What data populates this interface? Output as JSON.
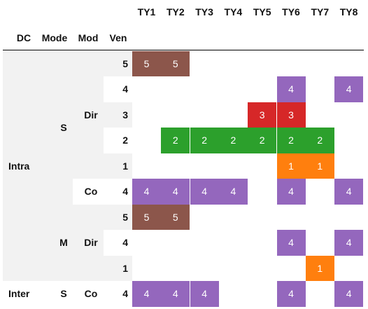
{
  "colors": {
    "5": "#8c564b",
    "4": "#9467bd",
    "3": "#d62728",
    "2": "#2ca02c",
    "1": "#ff7f0e",
    "label_bg": "#f2f2f2"
  },
  "headers": {
    "dc": "DC",
    "mode": "Mode",
    "mod": "Mod",
    "ven": "Ven"
  },
  "chart_data": {
    "type": "heatmap",
    "columns": [
      "TY1",
      "TY2",
      "TY3",
      "TY4",
      "TY5",
      "TY6",
      "TY7",
      "TY8"
    ],
    "rows": [
      {
        "dc": "Intra",
        "mode": "S",
        "mod": "Dir",
        "ven": "5",
        "values": [
          5,
          5,
          null,
          null,
          null,
          null,
          null,
          null
        ]
      },
      {
        "dc": "Intra",
        "mode": "S",
        "mod": "Dir",
        "ven": "4",
        "values": [
          null,
          null,
          null,
          null,
          null,
          4,
          null,
          4
        ]
      },
      {
        "dc": "Intra",
        "mode": "S",
        "mod": "Dir",
        "ven": "3",
        "values": [
          null,
          null,
          null,
          null,
          3,
          3,
          null,
          null
        ]
      },
      {
        "dc": "Intra",
        "mode": "S",
        "mod": "Dir",
        "ven": "2",
        "values": [
          null,
          2,
          2,
          2,
          2,
          2,
          2,
          null
        ]
      },
      {
        "dc": "Intra",
        "mode": "S",
        "mod": "Dir",
        "ven": "1",
        "values": [
          null,
          null,
          null,
          null,
          null,
          1,
          1,
          null
        ]
      },
      {
        "dc": "Intra",
        "mode": "S",
        "mod": "Co",
        "ven": "4",
        "values": [
          4,
          4,
          4,
          4,
          null,
          4,
          null,
          4
        ]
      },
      {
        "dc": "Intra",
        "mode": "M",
        "mod": "Dir",
        "ven": "5",
        "values": [
          5,
          5,
          null,
          null,
          null,
          null,
          null,
          null
        ]
      },
      {
        "dc": "Intra",
        "mode": "M",
        "mod": "Dir",
        "ven": "4",
        "values": [
          null,
          null,
          null,
          null,
          null,
          4,
          null,
          4
        ]
      },
      {
        "dc": "Intra",
        "mode": "M",
        "mod": "Dir",
        "ven": "1",
        "values": [
          null,
          null,
          null,
          null,
          null,
          null,
          1,
          null
        ]
      },
      {
        "dc": "Inter",
        "mode": "S",
        "mod": "Co",
        "ven": "4",
        "values": [
          4,
          4,
          4,
          null,
          null,
          4,
          null,
          4
        ]
      }
    ],
    "groups": {
      "dc": [
        {
          "label": "Intra",
          "start": 0,
          "end": 8
        },
        {
          "label": "Inter",
          "start": 9,
          "end": 9
        }
      ],
      "mode": [
        {
          "label": "S",
          "start": 0,
          "end": 5
        },
        {
          "label": "M",
          "start": 6,
          "end": 8
        },
        {
          "label": "S",
          "start": 9,
          "end": 9
        }
      ],
      "mod": [
        {
          "label": "Dir",
          "start": 0,
          "end": 4
        },
        {
          "label": "Co",
          "start": 5,
          "end": 5
        },
        {
          "label": "Dir",
          "start": 6,
          "end": 8
        },
        {
          "label": "Co",
          "start": 9,
          "end": 9
        }
      ]
    }
  }
}
